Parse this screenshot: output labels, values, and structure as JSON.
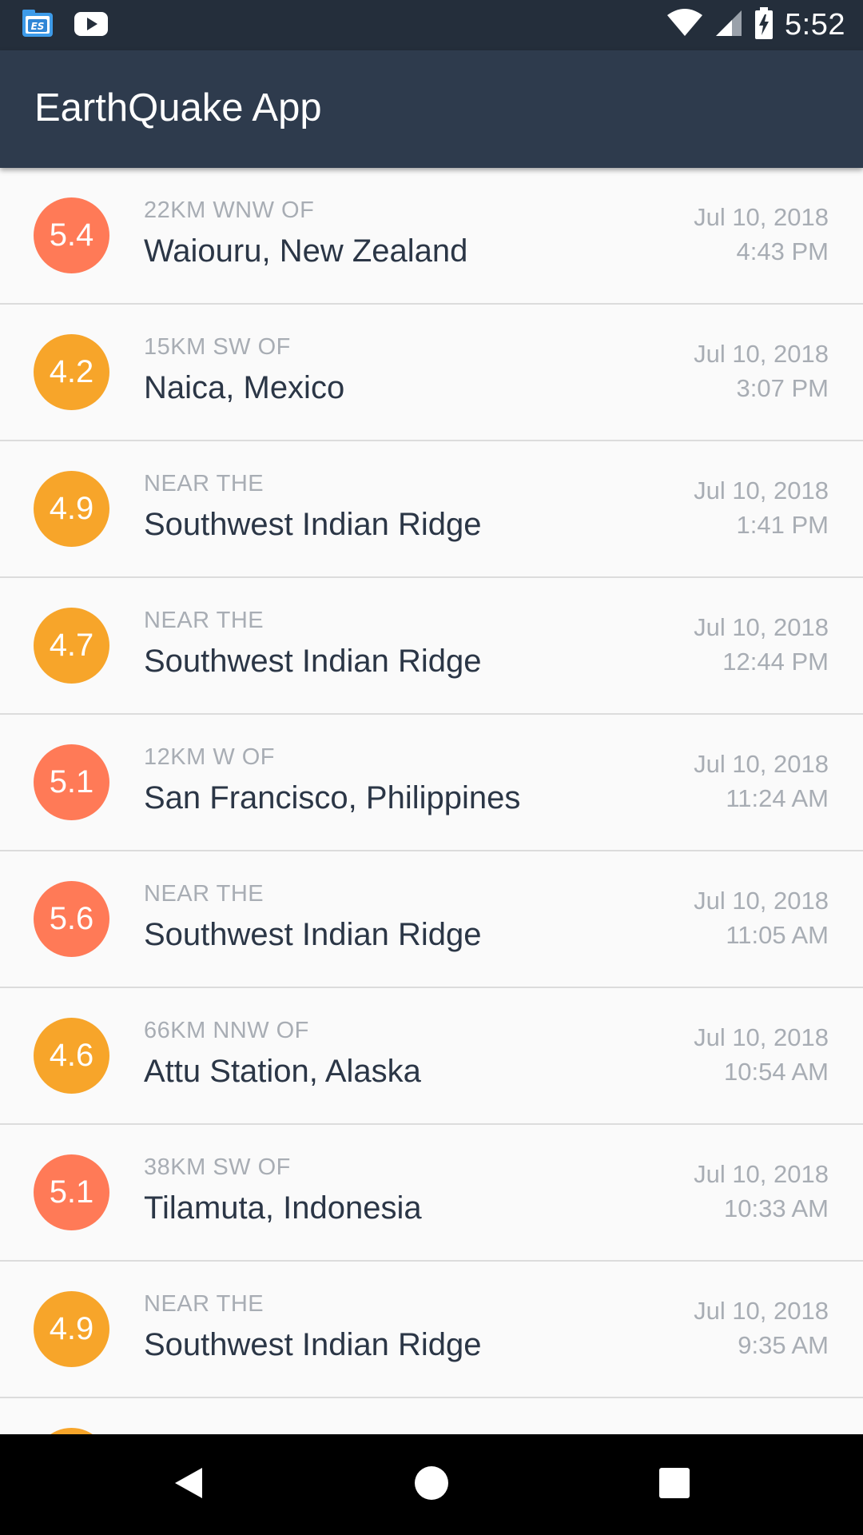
{
  "status_bar": {
    "time": "5:52",
    "left_icons": [
      "file-manager-icon",
      "youtube-icon"
    ],
    "right_icons": [
      "wifi-icon",
      "signal-icon",
      "battery-charging-icon"
    ]
  },
  "app_bar": {
    "title": "EarthQuake App"
  },
  "colors": {
    "status_bar": "#242e3b",
    "app_bar": "#2e3b4d",
    "mag_high": "#ff7a57",
    "mag_mid": "#f7a52a",
    "text_primary": "#2b3646",
    "text_secondary": "#a8adb4"
  },
  "earthquakes": [
    {
      "magnitude": "5.4",
      "color": "#ff7a57",
      "offset": "22KM WNW OF",
      "location": "Waiouru, New Zealand",
      "date": "Jul 10, 2018",
      "time": "4:43 PM"
    },
    {
      "magnitude": "4.2",
      "color": "#f7a52a",
      "offset": "15KM SW OF",
      "location": "Naica, Mexico",
      "date": "Jul 10, 2018",
      "time": "3:07 PM"
    },
    {
      "magnitude": "4.9",
      "color": "#f7a52a",
      "offset": "NEAR THE",
      "location": "Southwest Indian Ridge",
      "date": "Jul 10, 2018",
      "time": "1:41 PM"
    },
    {
      "magnitude": "4.7",
      "color": "#f7a52a",
      "offset": "NEAR THE",
      "location": "Southwest Indian Ridge",
      "date": "Jul 10, 2018",
      "time": "12:44 PM"
    },
    {
      "magnitude": "5.1",
      "color": "#ff7a57",
      "offset": "12KM W OF",
      "location": "San Francisco, Philippines",
      "date": "Jul 10, 2018",
      "time": "11:24 AM"
    },
    {
      "magnitude": "5.6",
      "color": "#ff7a57",
      "offset": "NEAR THE",
      "location": "Southwest Indian Ridge",
      "date": "Jul 10, 2018",
      "time": "11:05 AM"
    },
    {
      "magnitude": "4.6",
      "color": "#f7a52a",
      "offset": "66KM NNW OF",
      "location": "Attu Station, Alaska",
      "date": "Jul 10, 2018",
      "time": "10:54 AM"
    },
    {
      "magnitude": "5.1",
      "color": "#ff7a57",
      "offset": "38KM SW OF",
      "location": "Tilamuta, Indonesia",
      "date": "Jul 10, 2018",
      "time": "10:33 AM"
    },
    {
      "magnitude": "4.9",
      "color": "#f7a52a",
      "offset": "NEAR THE",
      "location": "Southwest Indian Ridge",
      "date": "Jul 10, 2018",
      "time": "9:35 AM"
    },
    {
      "magnitude": "",
      "color": "#f7a52a",
      "offset": "",
      "location": "",
      "date": "",
      "time": ""
    }
  ],
  "nav_bar": {
    "buttons": [
      "back-icon",
      "home-icon",
      "recents-icon"
    ]
  }
}
